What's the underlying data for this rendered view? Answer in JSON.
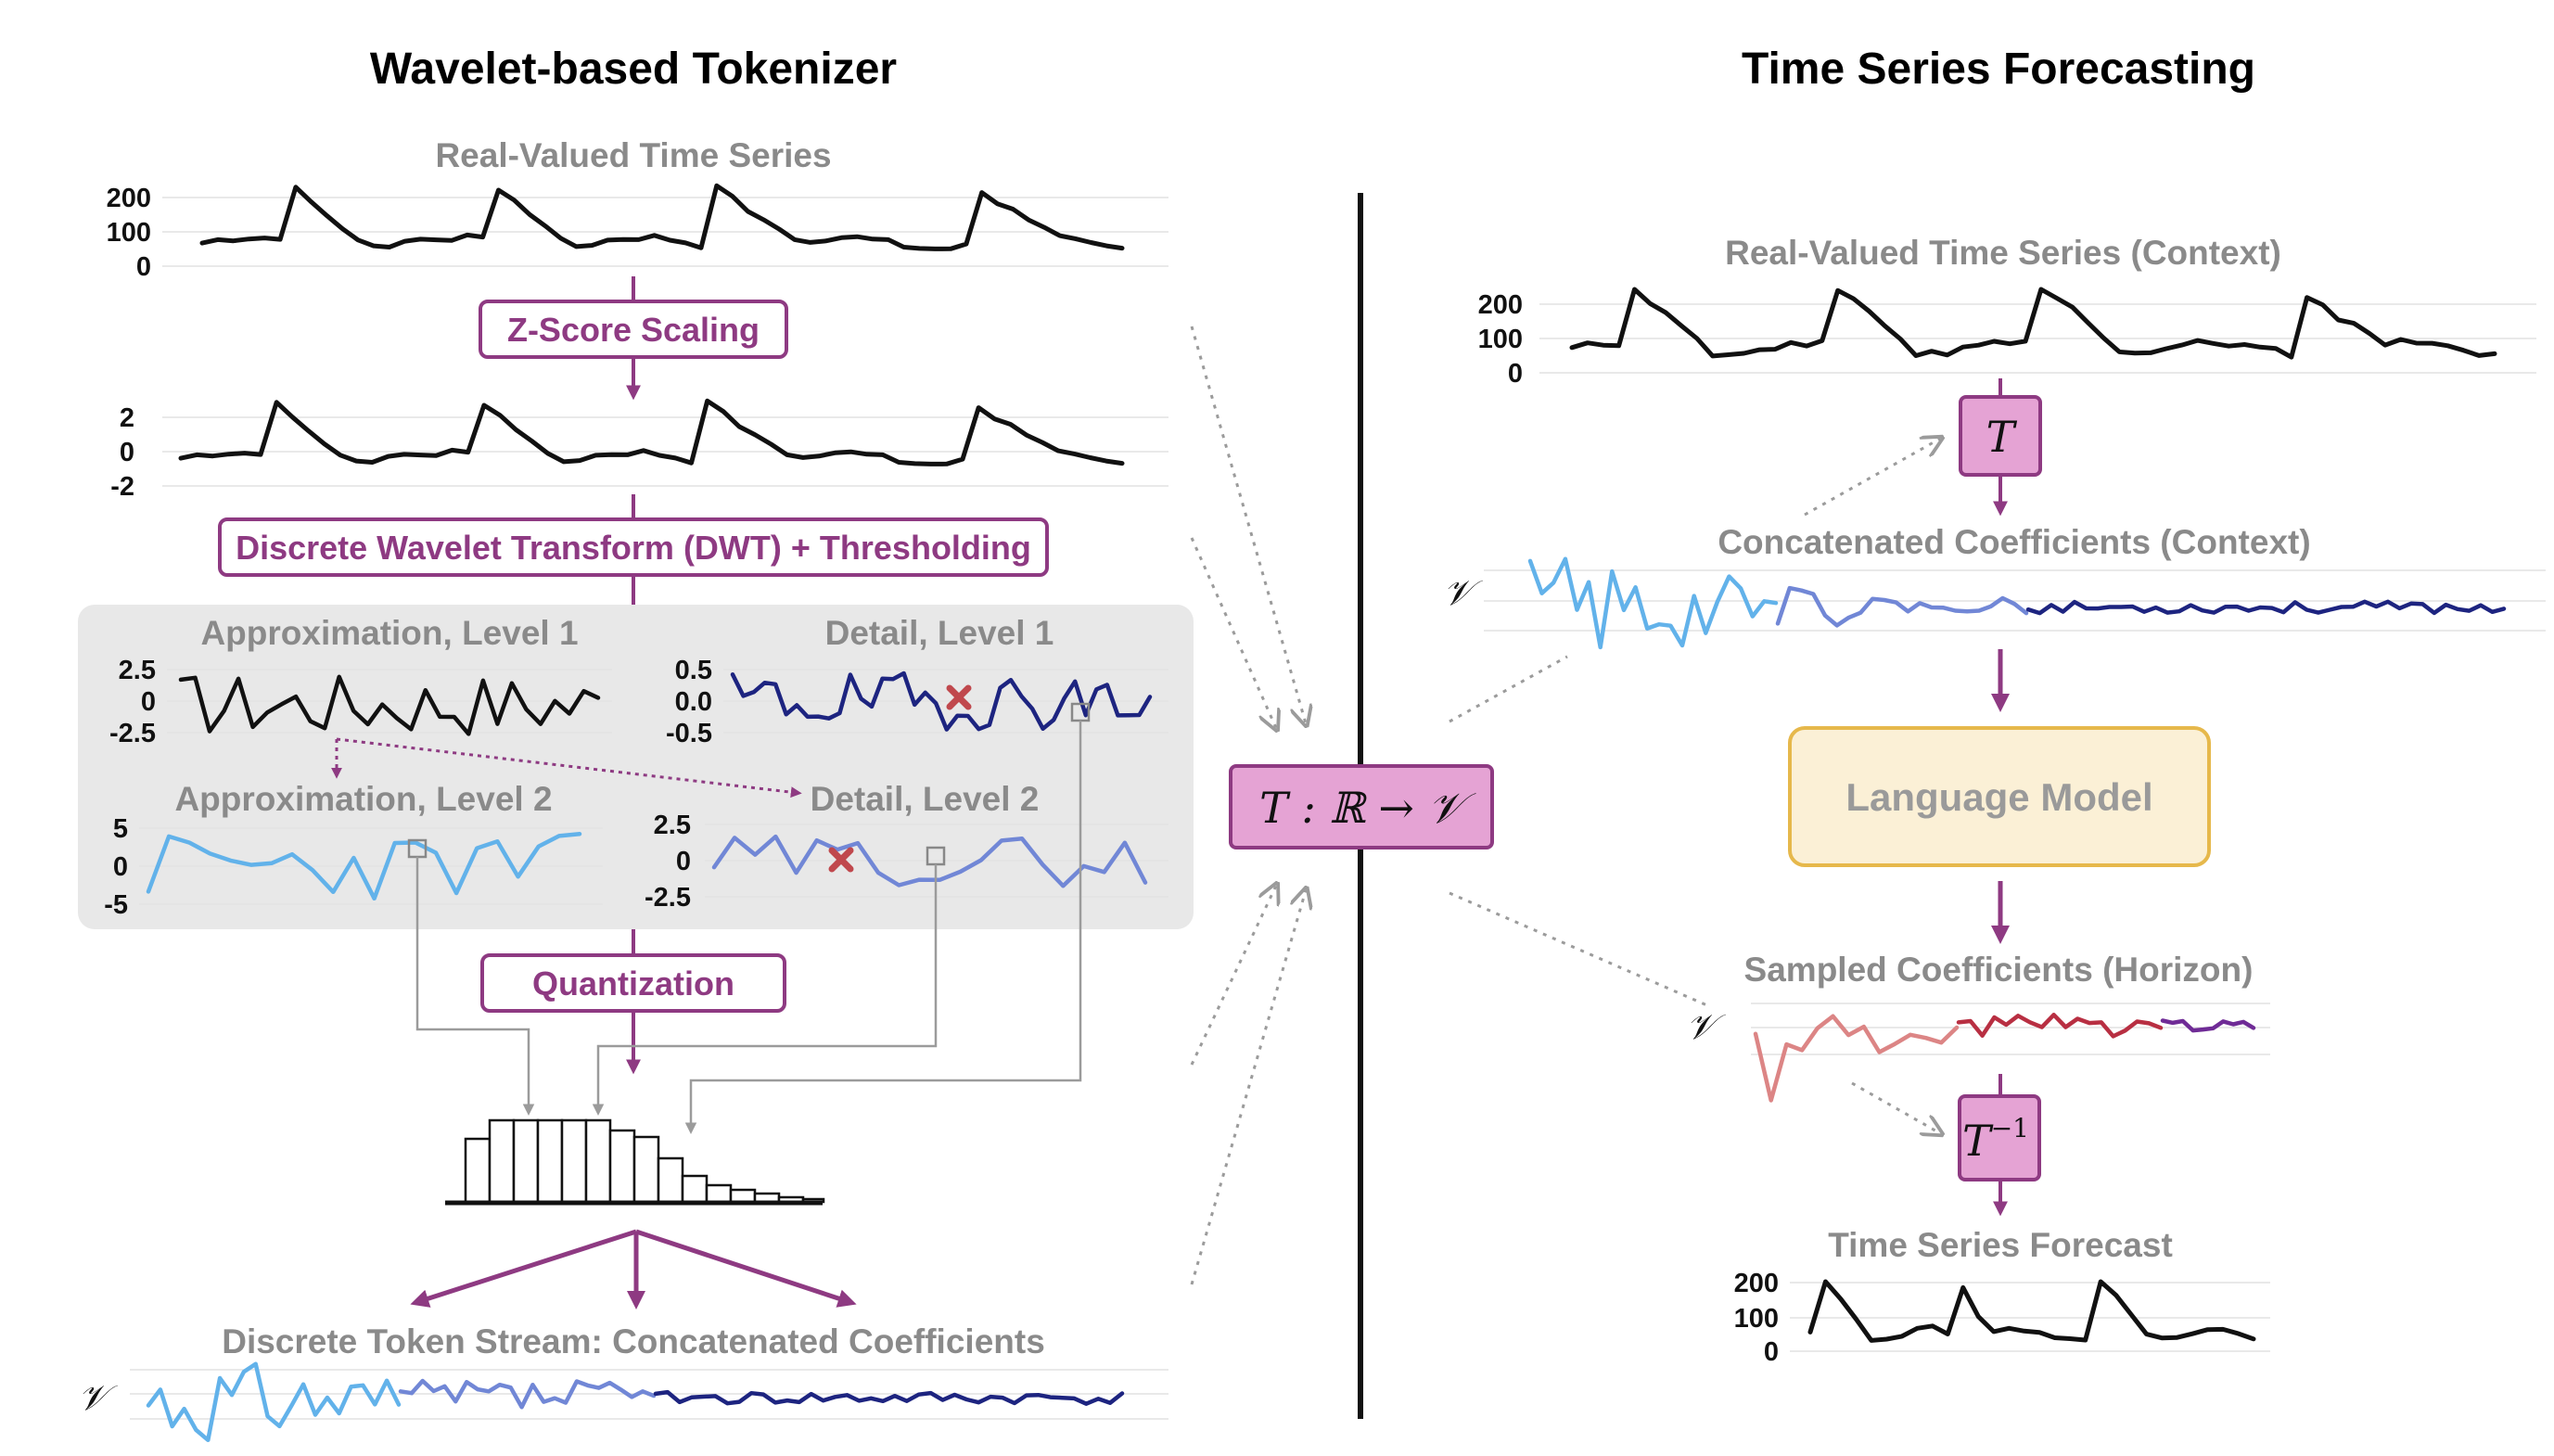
{
  "left": {
    "title": "Wavelet-based Tokenizer",
    "real_series_label": "Real-Valued Time Series",
    "real_series_ticks": [
      "200",
      "100",
      "0"
    ],
    "zscore_label": "Z-Score Scaling",
    "scaled_ticks": [
      "2",
      "0",
      "-2"
    ],
    "dwt_label": "Discrete Wavelet Transform (DWT) + Thresholding",
    "approx1_label": "Approximation, Level 1",
    "approx1_ticks": [
      "2.5",
      "0",
      "-2.5"
    ],
    "detail1_label": "Detail, Level 1",
    "detail1_ticks": [
      "0.5",
      "0.0",
      "-0.5"
    ],
    "approx2_label": "Approximation, Level 2",
    "approx2_ticks": [
      "5",
      "0",
      "-5"
    ],
    "detail2_label": "Detail, Level 2",
    "detail2_ticks": [
      "2.5",
      "0",
      "-2.5"
    ],
    "quantization_label": "Quantization",
    "token_stream_label": "Discrete Token Stream: Concatenated Coefficients",
    "token_axis_label": "𝒱"
  },
  "center": {
    "mapping_label": "T : ℝ → 𝒱"
  },
  "right": {
    "title": "Time Series Forecasting",
    "context_label": "Real-Valued Time Series (Context)",
    "context_ticks": [
      "200",
      "100",
      "0"
    ],
    "t_label": "T",
    "concat_label": "Concatenated Coefficients (Context)",
    "concat_axis_label": "𝒱",
    "language_model_label": "Language Model",
    "sampled_label": "Sampled Coefficients (Horizon)",
    "sampled_axis_label": "𝒱",
    "t_inverse_label": "T",
    "t_inverse_sup": "−1",
    "forecast_label": "Time Series Forecast",
    "forecast_ticks": [
      "200",
      "100",
      "0"
    ]
  },
  "colors": {
    "accent": "#8e3a82",
    "box_fill": "#e5a3d4",
    "lm_fill": "#fbf0d6",
    "lm_border": "#e6b84b",
    "panel": "#e8e8e8",
    "coef_light_blue": "#62b2ea",
    "coef_mid_blue": "#7187d6",
    "coef_dark_blue": "#1d2480",
    "sample_pink": "#dc8585",
    "sample_red": "#b82f42",
    "sample_purple": "#6f2b96",
    "cross": "#c0484d"
  },
  "icons": {
    "cross": "cross-marker-icon",
    "histogram": "histogram-icon"
  }
}
